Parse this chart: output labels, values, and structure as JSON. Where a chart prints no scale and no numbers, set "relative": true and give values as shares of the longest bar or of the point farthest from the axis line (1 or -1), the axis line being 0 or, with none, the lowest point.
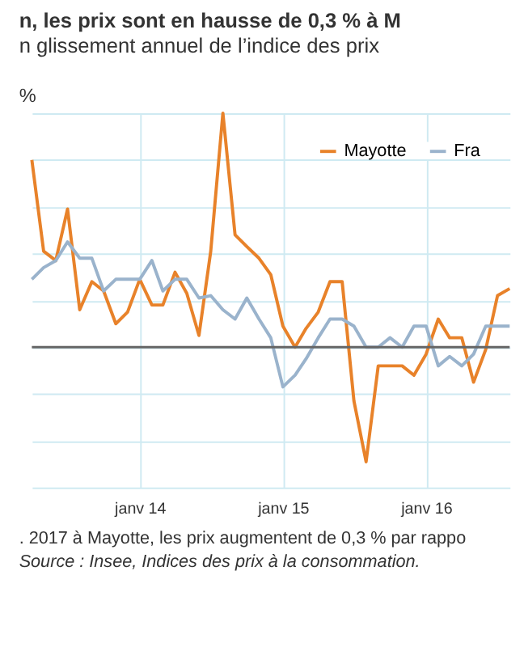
{
  "chart_data": {
    "type": "line",
    "title": "n, les prix sont en hausse de 0,3 % à M",
    "subtitle": "n glissement annuel de l’indice des prix",
    "ylabel": "%",
    "x": [
      "2013-04",
      "2013-05",
      "2013-06",
      "2013-07",
      "2013-08",
      "2013-09",
      "2013-10",
      "2013-11",
      "2013-12",
      "2014-01",
      "2014-02",
      "2014-03",
      "2014-04",
      "2014-05",
      "2014-06",
      "2014-07",
      "2014-08",
      "2014-09",
      "2014-10",
      "2014-11",
      "2014-12",
      "2015-01",
      "2015-02",
      "2015-03",
      "2015-04",
      "2015-05",
      "2015-06",
      "2015-07",
      "2015-08",
      "2015-09",
      "2015-10",
      "2015-11",
      "2015-12",
      "2016-01",
      "2016-02",
      "2016-03",
      "2016-04",
      "2016-05",
      "2016-06",
      "2016-07",
      "2016-08"
    ],
    "relative": true,
    "series": [
      {
        "name": "Mayotte",
        "color": "#e8822a",
        "values": [
          0.8,
          0.41,
          0.37,
          0.59,
          0.16,
          0.28,
          0.24,
          0.1,
          0.15,
          0.29,
          0.18,
          0.18,
          0.32,
          0.23,
          0.05,
          0.41,
          1,
          0.48,
          0.43,
          0.38,
          0.31,
          0.09,
          0.0,
          0.08,
          0.15,
          0.28,
          0.28,
          -0.23,
          -0.49,
          -0.08,
          -0.08,
          -0.08,
          -0.12,
          -0.03,
          0.12,
          0.04,
          0.04,
          -0.15,
          -0.01,
          0.22,
          0.25
        ]
      },
      {
        "name": "Fra",
        "color": "#9ab3cc",
        "values": [
          0.29,
          0.34,
          0.37,
          0.45,
          0.38,
          0.38,
          0.24,
          0.29,
          0.29,
          0.29,
          0.37,
          0.24,
          0.29,
          0.29,
          0.21,
          0.22,
          0.16,
          0.12,
          0.21,
          0.12,
          0.04,
          -0.17,
          -0.12,
          -0.05,
          0.04,
          0.12,
          0.12,
          0.09,
          0,
          0,
          0.04,
          0,
          0.09,
          0.09,
          -0.08,
          -0.04,
          -0.08,
          -0.03,
          0.09,
          0.09,
          0.09
        ]
      }
    ],
    "xlim": [
      "2013-04",
      "2016-08"
    ],
    "xticks": [
      {
        "value": "2014-01",
        "label": "janv 14"
      },
      {
        "value": "2015-01",
        "label": "janv 15"
      },
      {
        "value": "2016-01",
        "label": "janv 16"
      }
    ],
    "grid": true,
    "legend": "top right",
    "marker": "none",
    "line_style": "solid",
    "annotations": [
      ". 2017 à Mayotte, les prix augmentent de 0,3 % par rappo",
      "Source : Insee, Indices des prix à la consommation."
    ]
  }
}
